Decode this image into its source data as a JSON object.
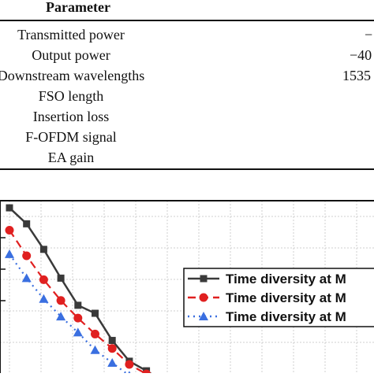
{
  "table": {
    "header": "Parameter",
    "rows": [
      {
        "label": "Transmitted power",
        "value": "−"
      },
      {
        "label": "Output power",
        "value": "−40"
      },
      {
        "label": "Downstream wavelengths",
        "value": "1535"
      },
      {
        "label": "FSO length",
        "value": ""
      },
      {
        "label": "Insertion loss",
        "value": ""
      },
      {
        "label": "F-OFDM signal",
        "value": ""
      },
      {
        "label": "EA gain",
        "value": ""
      }
    ]
  },
  "chart_data": {
    "type": "line",
    "grid": true,
    "legend_placement": "right",
    "series": [
      {
        "name": "Time diversity at M",
        "color": "#3a3a3a",
        "line_style": "solid",
        "marker": "square",
        "points": [
          [
            0,
            0.2
          ],
          [
            1,
            1.2
          ],
          [
            2,
            2.8
          ],
          [
            3,
            4.6
          ],
          [
            4,
            6.3
          ],
          [
            5,
            6.8
          ],
          [
            6,
            8.5
          ],
          [
            7,
            9.8
          ],
          [
            8,
            10.4
          ],
          [
            9,
            11.1
          ]
        ]
      },
      {
        "name": "Time diversity at M",
        "color": "#e02020",
        "line_style": "dashed",
        "marker": "circle",
        "points": [
          [
            0,
            1.6
          ],
          [
            1,
            3.2
          ],
          [
            2,
            4.7
          ],
          [
            3,
            6.0
          ],
          [
            4,
            7.1
          ],
          [
            5,
            8.1
          ],
          [
            6,
            9.0
          ],
          [
            7,
            10.0
          ],
          [
            8,
            10.6
          ]
        ]
      },
      {
        "name": "Time diversity at M",
        "color": "#3a6fe0",
        "line_style": "dotted",
        "marker": "triangle",
        "points": [
          [
            0,
            3.1
          ],
          [
            1,
            4.6
          ],
          [
            2,
            5.9
          ],
          [
            3,
            7.0
          ],
          [
            4,
            8.0
          ],
          [
            5,
            9.1
          ],
          [
            6,
            9.9
          ],
          [
            7,
            10.7
          ]
        ]
      }
    ]
  }
}
